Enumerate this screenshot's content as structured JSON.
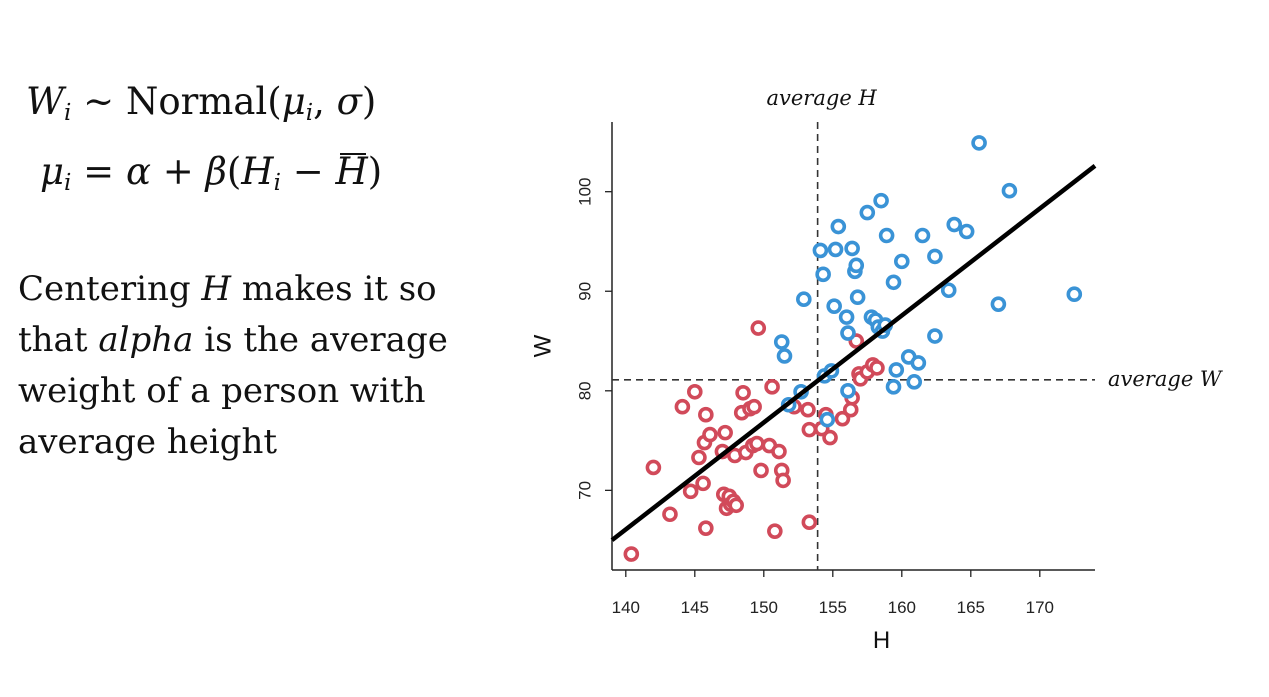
{
  "model": {
    "line1": {
      "lhs": "W",
      "lhs_sub": "i",
      "op": "~",
      "dist": "Normal(",
      "param1": "μ",
      "param1_sub": "i",
      "sep": ", ",
      "param2": "σ",
      "close": ")"
    },
    "line2": {
      "lhs": "μ",
      "lhs_sub": "i",
      "eq": " = ",
      "alpha": "α",
      "plus": " + ",
      "beta": "β",
      "open": "(",
      "h": "H",
      "h_sub": "i",
      "minus": " − ",
      "hbar": "H",
      "close": ")"
    }
  },
  "description": {
    "part1": "Centering ",
    "em1": "H",
    "part2": " makes it so that ",
    "em2": "alpha",
    "part3": " is the average weight of a person with average height"
  },
  "colors": {
    "red": "#d14a5a",
    "blue": "#3a93d6",
    "line": "#000000",
    "axis": "#222222"
  },
  "chart_data": {
    "type": "scatter",
    "xlabel": "H",
    "ylabel": "W",
    "xlim": [
      139,
      174
    ],
    "ylim": [
      62,
      107
    ],
    "xticks": [
      140,
      145,
      150,
      155,
      160,
      165,
      170
    ],
    "yticks": [
      70,
      80,
      90,
      100
    ],
    "mean_H": 153.9,
    "mean_W": 81.1,
    "mean_H_label": "average H",
    "mean_W_label": "average W",
    "regression_line": {
      "x": [
        139,
        174
      ],
      "y": [
        65.0,
        102.6
      ]
    },
    "series": [
      {
        "color": "red",
        "points": [
          [
            140.4,
            63.6
          ],
          [
            142.0,
            72.3
          ],
          [
            143.2,
            67.6
          ],
          [
            144.1,
            78.4
          ],
          [
            144.7,
            69.9
          ],
          [
            145.0,
            79.9
          ],
          [
            145.3,
            73.3
          ],
          [
            145.6,
            70.7
          ],
          [
            145.7,
            74.8
          ],
          [
            145.8,
            77.6
          ],
          [
            145.8,
            66.2
          ],
          [
            146.1,
            75.6
          ],
          [
            147.0,
            73.9
          ],
          [
            147.1,
            69.6
          ],
          [
            147.2,
            75.8
          ],
          [
            147.3,
            68.2
          ],
          [
            147.5,
            69.4
          ],
          [
            147.6,
            68.6
          ],
          [
            147.8,
            68.9
          ],
          [
            147.9,
            73.5
          ],
          [
            148.0,
            68.5
          ],
          [
            148.4,
            77.8
          ],
          [
            148.5,
            79.8
          ],
          [
            148.7,
            73.8
          ],
          [
            149.0,
            78.2
          ],
          [
            149.2,
            74.5
          ],
          [
            149.3,
            78.4
          ],
          [
            149.5,
            74.7
          ],
          [
            149.6,
            86.3
          ],
          [
            149.8,
            72.0
          ],
          [
            150.4,
            74.5
          ],
          [
            150.6,
            80.4
          ],
          [
            150.8,
            65.9
          ],
          [
            151.1,
            73.9
          ],
          [
            151.3,
            72.0
          ],
          [
            151.4,
            71.0
          ],
          [
            152.2,
            78.4
          ],
          [
            153.2,
            78.1
          ],
          [
            153.3,
            76.1
          ],
          [
            153.3,
            66.8
          ],
          [
            154.2,
            76.2
          ],
          [
            154.5,
            77.6
          ],
          [
            154.8,
            75.3
          ],
          [
            155.7,
            77.2
          ],
          [
            156.3,
            78.1
          ],
          [
            156.4,
            79.3
          ],
          [
            156.7,
            85.0
          ],
          [
            156.9,
            81.7
          ],
          [
            157.0,
            81.2
          ],
          [
            157.5,
            81.9
          ],
          [
            157.9,
            82.6
          ],
          [
            158.2,
            82.3
          ]
        ]
      },
      {
        "color": "blue",
        "points": [
          [
            151.3,
            84.9
          ],
          [
            151.5,
            83.5
          ],
          [
            151.8,
            78.6
          ],
          [
            152.7,
            79.9
          ],
          [
            152.9,
            89.2
          ],
          [
            154.1,
            94.1
          ],
          [
            154.3,
            91.7
          ],
          [
            154.4,
            81.5
          ],
          [
            154.6,
            77.1
          ],
          [
            154.9,
            82.0
          ],
          [
            155.1,
            88.5
          ],
          [
            155.2,
            94.2
          ],
          [
            155.4,
            96.5
          ],
          [
            156.0,
            87.4
          ],
          [
            156.1,
            85.8
          ],
          [
            156.1,
            80.0
          ],
          [
            156.4,
            94.3
          ],
          [
            156.6,
            92.0
          ],
          [
            156.7,
            92.6
          ],
          [
            156.8,
            89.4
          ],
          [
            157.5,
            97.9
          ],
          [
            157.8,
            87.4
          ],
          [
            158.1,
            87.1
          ],
          [
            158.3,
            86.4
          ],
          [
            158.5,
            99.1
          ],
          [
            158.6,
            86.0
          ],
          [
            158.8,
            86.6
          ],
          [
            158.9,
            95.6
          ],
          [
            159.4,
            90.9
          ],
          [
            159.4,
            80.4
          ],
          [
            159.6,
            82.1
          ],
          [
            160.0,
            93.0
          ],
          [
            160.5,
            83.4
          ],
          [
            160.9,
            80.9
          ],
          [
            161.2,
            82.8
          ],
          [
            161.5,
            95.6
          ],
          [
            162.4,
            85.5
          ],
          [
            162.4,
            93.5
          ],
          [
            163.4,
            90.1
          ],
          [
            163.8,
            96.7
          ],
          [
            164.7,
            96.0
          ],
          [
            165.6,
            104.9
          ],
          [
            167.0,
            88.7
          ],
          [
            167.8,
            100.1
          ],
          [
            172.5,
            89.7
          ]
        ]
      }
    ]
  }
}
